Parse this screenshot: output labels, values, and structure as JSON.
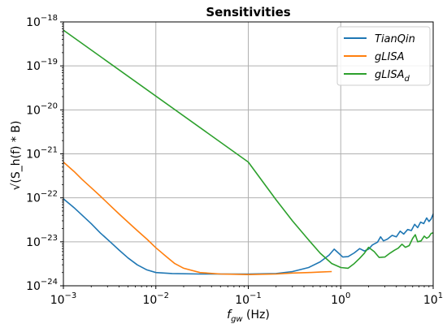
{
  "chart_data": {
    "type": "line",
    "title": "Sensitivities",
    "xlabel": {
      "main": "f",
      "sub": "gw",
      "unit": " (Hz)"
    },
    "ylabel": "√(S_h(f) * B)",
    "xscale": "log",
    "yscale": "log",
    "xlim": [
      0.001,
      10
    ],
    "ylim": [
      1e-24,
      1e-18
    ],
    "grid": true,
    "legend_position": "top-right",
    "x_ticks": [
      {
        "value": 0.001,
        "base": "10",
        "exp": "−3"
      },
      {
        "value": 0.01,
        "base": "10",
        "exp": "−2"
      },
      {
        "value": 0.1,
        "base": "10",
        "exp": "−1"
      },
      {
        "value": 1,
        "base": "10",
        "exp": "0"
      },
      {
        "value": 10,
        "base": "10",
        "exp": "1"
      }
    ],
    "y_ticks": [
      {
        "value": 1e-24,
        "base": "10",
        "exp": "−24"
      },
      {
        "value": 1e-23,
        "base": "10",
        "exp": "−23"
      },
      {
        "value": 1e-22,
        "base": "10",
        "exp": "−22"
      },
      {
        "value": 1e-21,
        "base": "10",
        "exp": "−21"
      },
      {
        "value": 1e-20,
        "base": "10",
        "exp": "−20"
      },
      {
        "value": 1e-19,
        "base": "10",
        "exp": "−19"
      },
      {
        "value": 1e-18,
        "base": "10",
        "exp": "−18"
      }
    ],
    "series": [
      {
        "name": "TianQin",
        "name_sub": "",
        "color": "#1f77b4",
        "points": [
          [
            0.001,
            9.5e-23
          ],
          [
            0.0013,
            6e-23
          ],
          [
            0.0016,
            4e-23
          ],
          [
            0.002,
            2.6e-23
          ],
          [
            0.0025,
            1.6e-23
          ],
          [
            0.0032,
            1e-23
          ],
          [
            0.004,
            6.5e-24
          ],
          [
            0.005,
            4.3e-24
          ],
          [
            0.0063,
            3e-24
          ],
          [
            0.008,
            2.3e-24
          ],
          [
            0.01,
            2e-24
          ],
          [
            0.015,
            1.9e-24
          ],
          [
            0.03,
            1.85e-24
          ],
          [
            0.1,
            1.85e-24
          ],
          [
            0.2,
            1.9e-24
          ],
          [
            0.3,
            2.1e-24
          ],
          [
            0.45,
            2.6e-24
          ],
          [
            0.6,
            3.5e-24
          ],
          [
            0.75,
            5e-24
          ],
          [
            0.85,
            6.8e-24
          ],
          [
            0.95,
            5.5e-24
          ],
          [
            1.05,
            4.5e-24
          ],
          [
            1.2,
            4.6e-24
          ],
          [
            1.4,
            5.6e-24
          ],
          [
            1.6,
            7e-24
          ],
          [
            1.8,
            6.2e-24
          ],
          [
            2.0,
            6.8e-24
          ],
          [
            2.2,
            8.5e-24
          ],
          [
            2.5,
            9.8e-24
          ],
          [
            2.7,
            1.3e-23
          ],
          [
            2.9,
            1.05e-23
          ],
          [
            3.2,
            1.15e-23
          ],
          [
            3.6,
            1.4e-23
          ],
          [
            4.0,
            1.3e-23
          ],
          [
            4.4,
            1.75e-23
          ],
          [
            4.8,
            1.5e-23
          ],
          [
            5.3,
            1.9e-23
          ],
          [
            5.8,
            1.8e-23
          ],
          [
            6.3,
            2.5e-23
          ],
          [
            6.8,
            2.1e-23
          ],
          [
            7.3,
            2.8e-23
          ],
          [
            7.9,
            2.6e-23
          ],
          [
            8.5,
            3.5e-23
          ],
          [
            9.0,
            2.9e-23
          ],
          [
            9.5,
            3.3e-23
          ],
          [
            10,
            4.3e-23
          ]
        ]
      },
      {
        "name": "gLISA",
        "name_sub": "",
        "color": "#ff7f0e",
        "points": [
          [
            0.001,
            6.5e-22
          ],
          [
            0.0013,
            4e-22
          ],
          [
            0.0016,
            2.6e-22
          ],
          [
            0.002,
            1.7e-22
          ],
          [
            0.0025,
            1.1e-22
          ],
          [
            0.0032,
            6.7e-23
          ],
          [
            0.004,
            4.3e-23
          ],
          [
            0.005,
            2.8e-23
          ],
          [
            0.0063,
            1.8e-23
          ],
          [
            0.008,
            1.15e-23
          ],
          [
            0.01,
            7.3e-24
          ],
          [
            0.013,
            4.6e-24
          ],
          [
            0.016,
            3.2e-24
          ],
          [
            0.02,
            2.5e-24
          ],
          [
            0.03,
            2e-24
          ],
          [
            0.05,
            1.85e-24
          ],
          [
            0.1,
            1.8e-24
          ],
          [
            0.2,
            1.85e-24
          ],
          [
            0.3,
            1.95e-24
          ],
          [
            0.45,
            2e-24
          ],
          [
            0.6,
            2.05e-24
          ],
          [
            0.8,
            2.1e-24
          ]
        ]
      },
      {
        "name": "gLISA",
        "name_sub": "d",
        "color": "#2ca02c",
        "points": [
          [
            0.001,
            6.5e-19
          ],
          [
            0.1,
            6.5e-22
          ],
          [
            0.2,
            9e-23
          ],
          [
            0.3,
            3e-23
          ],
          [
            0.45,
            1.1e-23
          ],
          [
            0.6,
            5.5e-24
          ],
          [
            0.8,
            3.2e-24
          ],
          [
            1.0,
            2.6e-24
          ],
          [
            1.2,
            2.5e-24
          ],
          [
            1.4,
            3.2e-24
          ],
          [
            1.6,
            4.2e-24
          ],
          [
            1.8,
            5.5e-24
          ],
          [
            2.0,
            7.5e-24
          ],
          [
            2.3,
            6e-24
          ],
          [
            2.6,
            4.4e-24
          ],
          [
            3.0,
            4.5e-24
          ],
          [
            3.4,
            5.5e-24
          ],
          [
            3.8,
            6.4e-24
          ],
          [
            4.2,
            7.2e-24
          ],
          [
            4.6,
            8.8e-24
          ],
          [
            5.0,
            7.5e-24
          ],
          [
            5.5,
            8.2e-24
          ],
          [
            6.0,
            1.2e-23
          ],
          [
            6.4,
            1.45e-23
          ],
          [
            6.8,
            1e-23
          ],
          [
            7.4,
            1.05e-23
          ],
          [
            8.0,
            1.35e-23
          ],
          [
            8.5,
            1.2e-23
          ],
          [
            9.0,
            1.3e-23
          ],
          [
            9.5,
            1.55e-23
          ],
          [
            10,
            1.6e-23
          ]
        ]
      }
    ]
  }
}
